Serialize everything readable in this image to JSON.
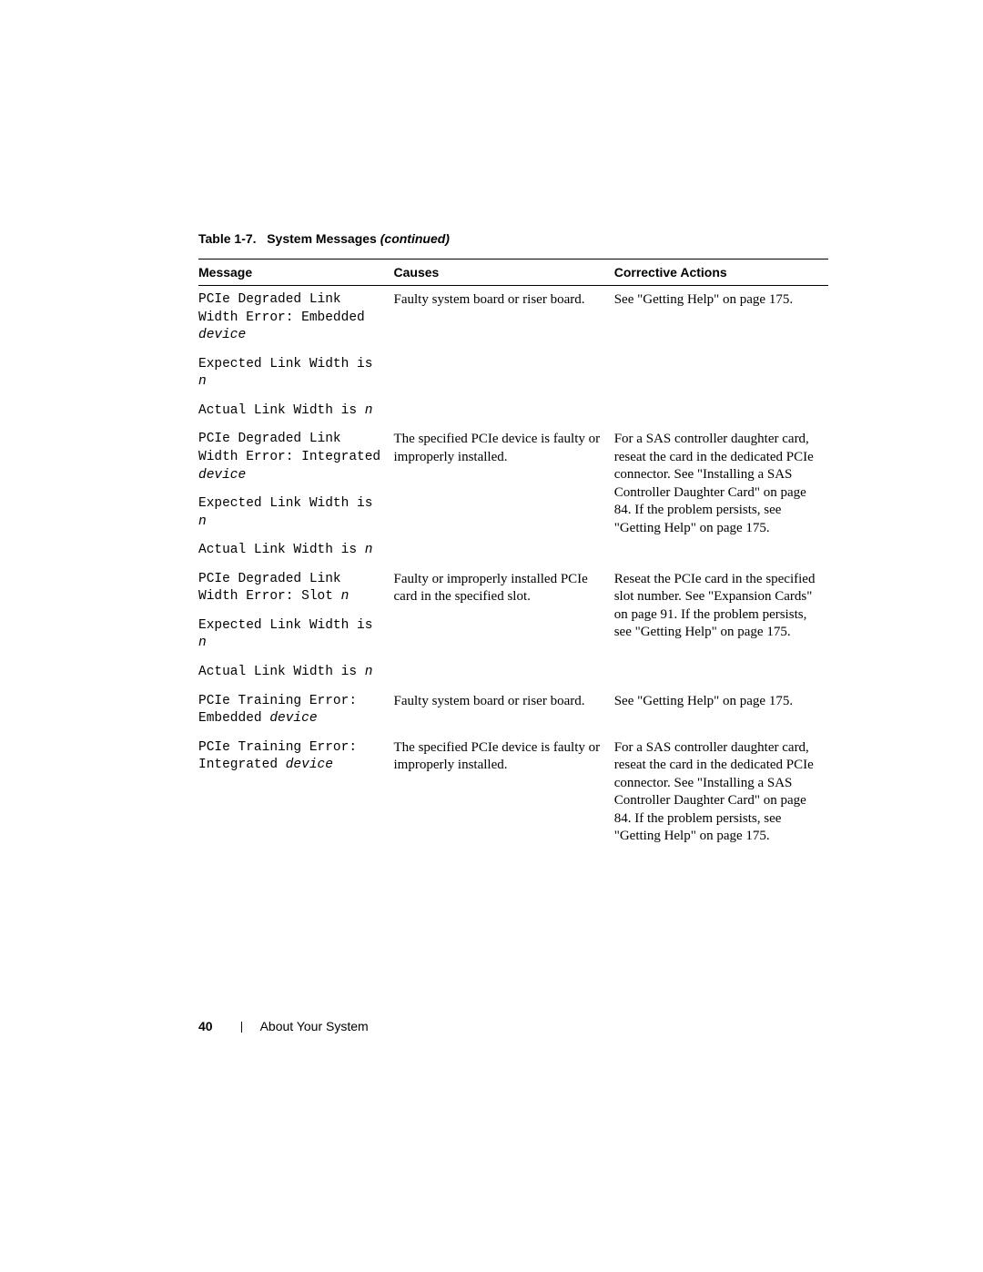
{
  "tableCaption": {
    "prefix": "Table 1-7.",
    "title": "System Messages",
    "suffix": "(continued)"
  },
  "headers": {
    "message": "Message",
    "causes": "Causes",
    "actions": "Corrective Actions"
  },
  "rows": [
    {
      "msg": [
        {
          "plain": "PCIe Degraded Link Width Error: Embedded ",
          "italic": "device"
        },
        {
          "plain": "Expected Link Width is ",
          "italic": "n"
        },
        {
          "plain": "Actual Link Width is ",
          "italic": "n"
        }
      ],
      "cause": "Faulty system board or riser board.",
      "action": "See \"Getting Help\" on page 175."
    },
    {
      "msg": [
        {
          "plain": "PCIe Degraded Link Width Error: Integrated ",
          "italic": "device"
        },
        {
          "plain": "Expected Link Width is ",
          "italic": "n"
        },
        {
          "plain": "Actual Link Width is ",
          "italic": "n"
        }
      ],
      "cause": "The specified PCIe device is faulty or improperly installed.",
      "action": "For a SAS controller daughter card, reseat the card in the dedicated PCIe connector. See \"Installing a SAS Controller Daughter Card\" on page 84. If the problem persists, see \"Getting Help\" on page 175."
    },
    {
      "msg": [
        {
          "plain": "PCIe Degraded Link Width Error: Slot ",
          "italic": "n"
        },
        {
          "plain": "Expected Link Width is ",
          "italic": "n"
        },
        {
          "plain": "Actual Link Width is ",
          "italic": "n"
        }
      ],
      "cause": "Faulty or improperly installed PCIe card in the specified slot.",
      "action": "Reseat the PCIe card in the specified slot number. See \"Expansion Cards\" on page 91. If the problem persists, see \"Getting Help\" on page 175."
    },
    {
      "msg": [
        {
          "plain": "PCIe Training Error: Embedded ",
          "italic": "device"
        }
      ],
      "cause": "Faulty system board or riser board.",
      "action": "See \"Getting Help\" on page 175."
    },
    {
      "msg": [
        {
          "plain": "PCIe Training Error: Integrated ",
          "italic": "device"
        }
      ],
      "cause": "The specified PCIe device is faulty or improperly installed.",
      "action": "For a SAS controller daughter card, reseat the card in the dedicated PCIe connector. See \"Installing a SAS Controller Daughter Card\" on page 84. If the problem persists, see \"Getting Help\" on page 175."
    }
  ],
  "footer": {
    "pageNumber": "40",
    "section": "About Your System"
  }
}
